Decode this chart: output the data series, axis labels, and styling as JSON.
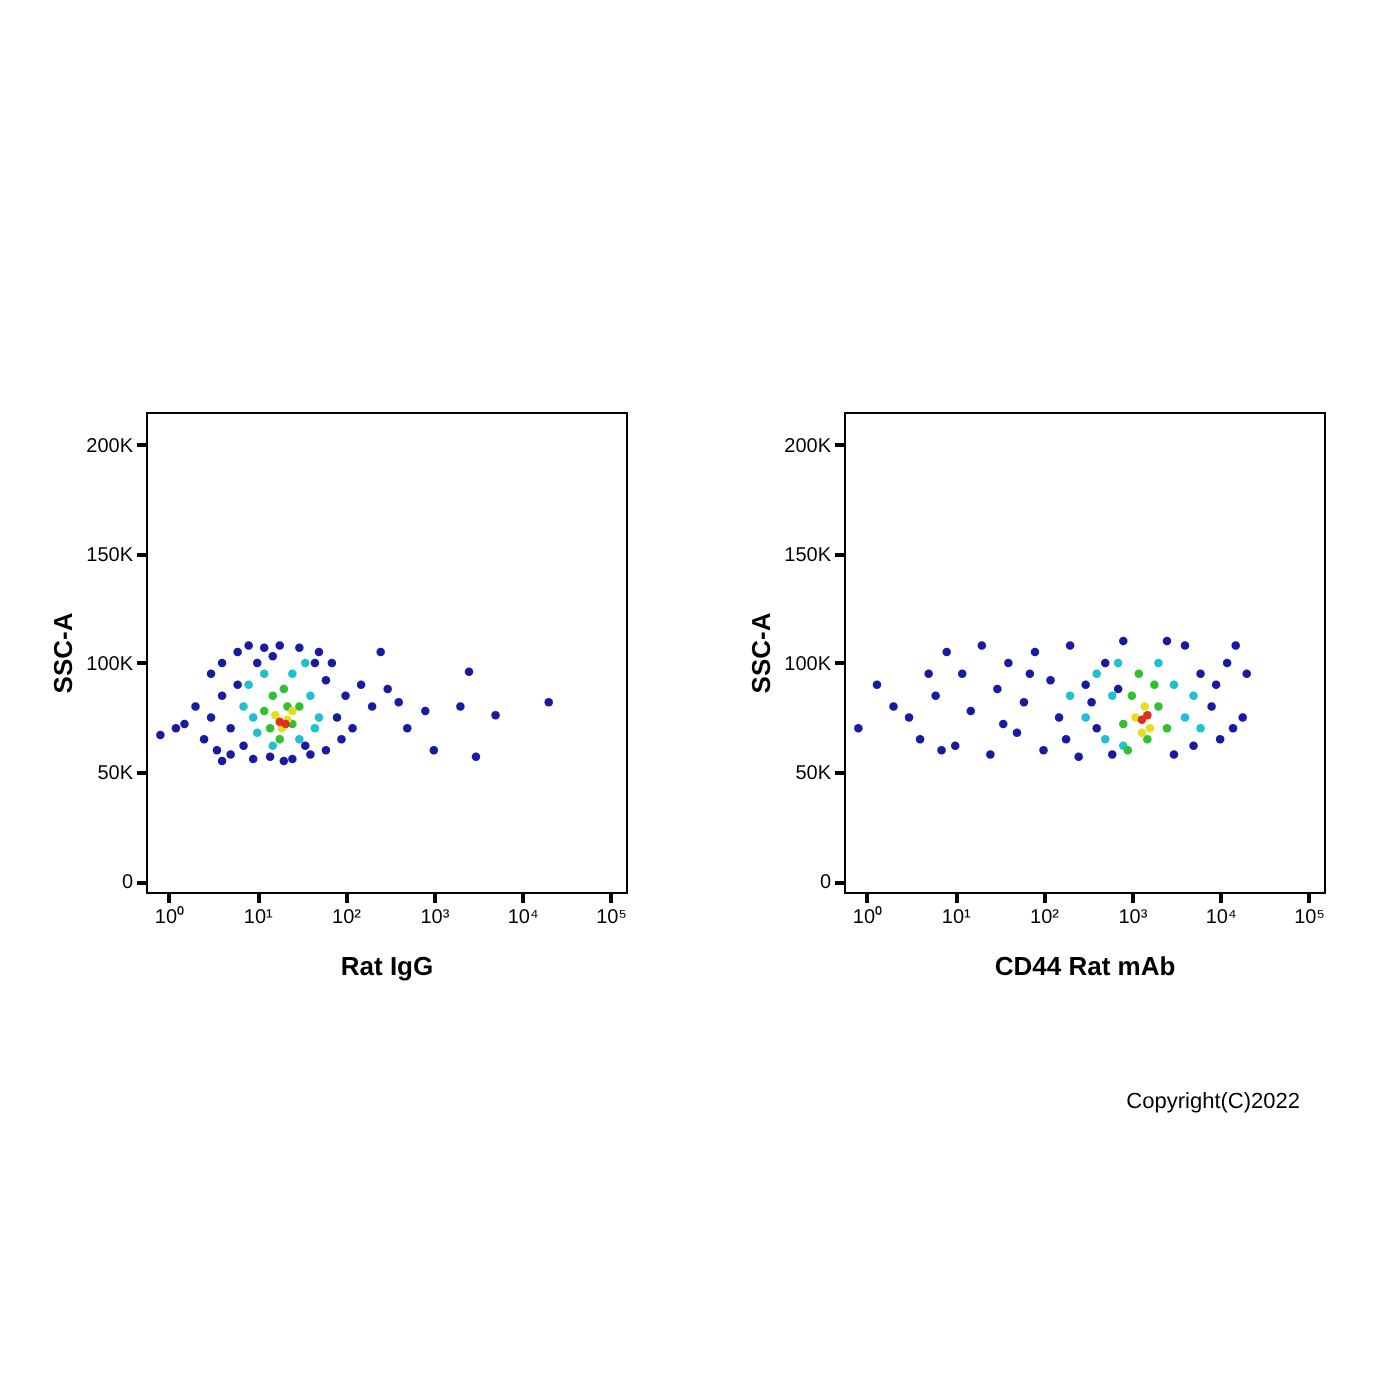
{
  "chart_data": [
    {
      "type": "scatter",
      "xlabel": "Rat IgG",
      "ylabel": "SSC-A",
      "log": "x",
      "grid": false,
      "marker": "circle",
      "xlim": [
        0.55,
        150000
      ],
      "ylim": [
        -5000,
        215000
      ],
      "xticks": [
        {
          "value": 1,
          "label": "10⁰"
        },
        {
          "value": 10,
          "label": "10¹"
        },
        {
          "value": 100,
          "label": "10²"
        },
        {
          "value": 1000,
          "label": "10³"
        },
        {
          "value": 10000,
          "label": "10⁴"
        },
        {
          "value": 100000,
          "label": "10⁵"
        }
      ],
      "yticks": [
        0,
        {
          "value": 50000,
          "label": "50K"
        },
        {
          "value": 100000,
          "label": "100K"
        },
        {
          "value": 150000,
          "label": "150K"
        },
        {
          "value": 200000,
          "label": "200K"
        }
      ],
      "series": [
        {
          "color": "#1a1aa0",
          "x": [
            1.5,
            2,
            2.5,
            3,
            3.5,
            4,
            4,
            5,
            5,
            6,
            6,
            7,
            8,
            9,
            10,
            12,
            14,
            18,
            25,
            30,
            40,
            45,
            60,
            60,
            80,
            90,
            100,
            120,
            150,
            200,
            250,
            300,
            400,
            500,
            800,
            1000,
            2000,
            2500,
            3000,
            5000,
            20000,
            1.2,
            0.8,
            4,
            3,
            50,
            70,
            20,
            15,
            35
          ],
          "values": [
            72000,
            80000,
            65000,
            95000,
            60000,
            100000,
            85000,
            70000,
            58000,
            105000,
            90000,
            62000,
            108000,
            56000,
            100000,
            107000,
            57000,
            108000,
            56000,
            107000,
            58000,
            100000,
            60000,
            92000,
            75000,
            65000,
            85000,
            70000,
            90000,
            80000,
            105000,
            88000,
            82000,
            70000,
            78000,
            60000,
            80000,
            96000,
            57000,
            76000,
            82000,
            70000,
            67000,
            55000,
            75000,
            105000,
            100000,
            55000,
            103000,
            62000
          ]
        },
        {
          "color": "#20c0d0",
          "x": [
            7,
            8,
            10,
            12,
            15,
            25,
            30,
            40,
            50,
            35,
            9,
            45
          ],
          "values": [
            80000,
            90000,
            68000,
            95000,
            62000,
            95000,
            65000,
            85000,
            75000,
            100000,
            75000,
            70000
          ]
        },
        {
          "color": "#30c030",
          "x": [
            12,
            15,
            20,
            25,
            18,
            30,
            14,
            22
          ],
          "values": [
            78000,
            85000,
            88000,
            72000,
            65000,
            80000,
            70000,
            80000
          ]
        },
        {
          "color": "#e0e020",
          "x": [
            16,
            22,
            19,
            25
          ],
          "values": [
            76000,
            74000,
            70000,
            78000
          ]
        },
        {
          "color": "#e03020",
          "x": [
            18,
            21
          ],
          "values": [
            73000,
            72000
          ]
        }
      ]
    },
    {
      "type": "scatter",
      "xlabel": "CD44 Rat mAb",
      "ylabel": "SSC-A",
      "log": "x",
      "grid": false,
      "marker": "circle",
      "xlim": [
        0.55,
        150000
      ],
      "ylim": [
        -5000,
        215000
      ],
      "xticks": [
        {
          "value": 1,
          "label": "10⁰"
        },
        {
          "value": 10,
          "label": "10¹"
        },
        {
          "value": 100,
          "label": "10²"
        },
        {
          "value": 1000,
          "label": "10³"
        },
        {
          "value": 10000,
          "label": "10⁴"
        },
        {
          "value": 100000,
          "label": "10⁵"
        }
      ],
      "yticks": [
        0,
        {
          "value": 50000,
          "label": "50K"
        },
        {
          "value": 100000,
          "label": "100K"
        },
        {
          "value": 150000,
          "label": "150K"
        },
        {
          "value": 200000,
          "label": "200K"
        }
      ],
      "annotations": [
        "Copyright(C)2022"
      ],
      "series": [
        {
          "color": "#1a1aa0",
          "x": [
            0.8,
            1.3,
            3,
            4,
            5,
            6,
            8,
            10,
            12,
            15,
            20,
            25,
            30,
            40,
            50,
            60,
            80,
            100,
            120,
            150,
            200,
            250,
            300,
            400,
            500,
            600,
            800,
            3000,
            4000,
            5000,
            6000,
            8000,
            10000,
            12000,
            15000,
            18000,
            20000,
            2,
            7,
            35,
            70,
            180,
            350,
            700,
            2500,
            9000,
            14000
          ],
          "values": [
            70000,
            90000,
            75000,
            65000,
            95000,
            85000,
            105000,
            62000,
            95000,
            78000,
            108000,
            58000,
            88000,
            100000,
            68000,
            82000,
            105000,
            60000,
            92000,
            75000,
            108000,
            57000,
            90000,
            70000,
            100000,
            58000,
            110000,
            58000,
            108000,
            62000,
            95000,
            80000,
            65000,
            100000,
            108000,
            75000,
            95000,
            80000,
            60000,
            72000,
            95000,
            65000,
            82000,
            88000,
            110000,
            90000,
            70000
          ]
        },
        {
          "color": "#20c0d0",
          "x": [
            300,
            400,
            500,
            600,
            700,
            2000,
            3000,
            4000,
            5000,
            800,
            200,
            6000
          ],
          "values": [
            75000,
            95000,
            65000,
            85000,
            100000,
            100000,
            90000,
            75000,
            85000,
            62000,
            85000,
            70000
          ]
        },
        {
          "color": "#30c030",
          "x": [
            800,
            1000,
            1200,
            1500,
            2000,
            2500,
            900,
            1800
          ],
          "values": [
            72000,
            85000,
            95000,
            65000,
            80000,
            70000,
            60000,
            90000
          ]
        },
        {
          "color": "#e0e020",
          "x": [
            1100,
            1400,
            1600,
            1300
          ],
          "values": [
            75000,
            80000,
            70000,
            68000
          ]
        },
        {
          "color": "#e03020",
          "x": [
            1300,
            1500
          ],
          "values": [
            74000,
            76000
          ]
        }
      ]
    }
  ]
}
